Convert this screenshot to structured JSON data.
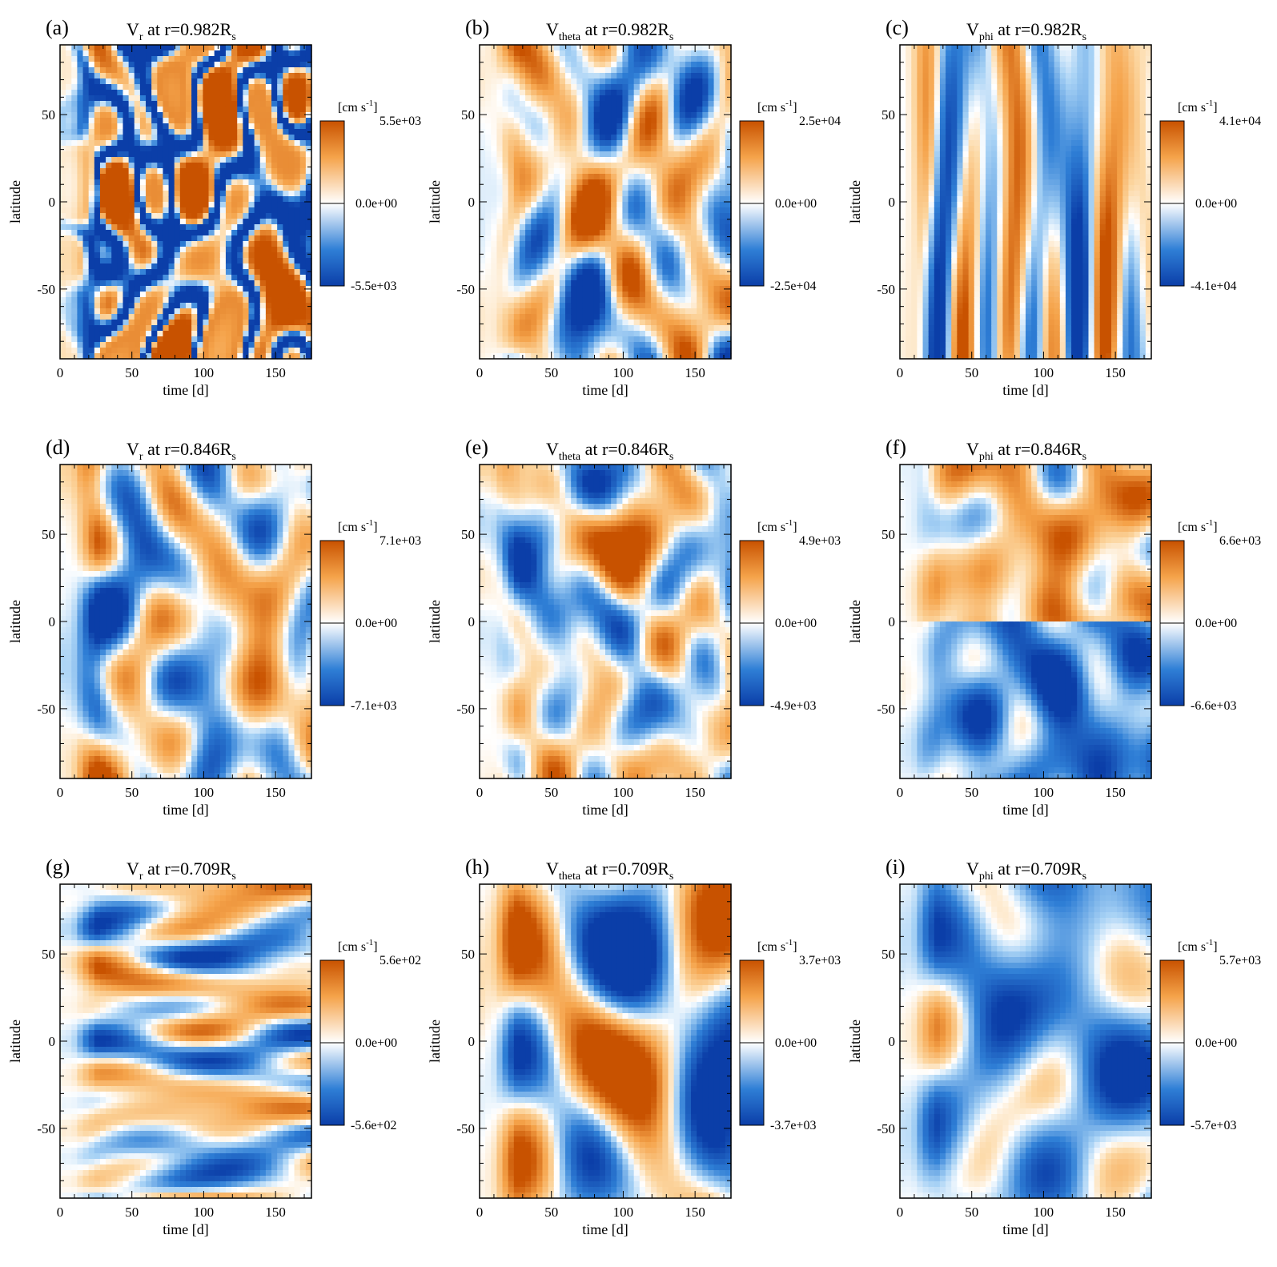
{
  "figure": {
    "colors": {
      "positive": "#c85200",
      "zero": "#ffffff",
      "negative": "#0b3ea8",
      "mid_pos": "#f5a34a",
      "mid_neg": "#4c97e0"
    },
    "x_ticks": [
      "0",
      "50",
      "100",
      "150"
    ],
    "y_ticks": [
      "50",
      "0",
      "-50"
    ],
    "xlabel": "time [d]",
    "ylabel": "latitude",
    "colorbar_unit": "[cm s",
    "colorbar_unit_sup": "-1",
    "colorbar_unit_close": "]",
    "colorbar_zero": "0.0e+00"
  },
  "chart_data": [
    {
      "type": "heatmap",
      "panel": "(a)",
      "title_main": "V",
      "title_sub": "r",
      "title_rest": " at r=0.982R",
      "title_sub2": "s",
      "variable": "Vr",
      "radius": "0.982",
      "xlabel": "time [d]",
      "ylabel": "latitude",
      "xlim": [
        0,
        175
      ],
      "ylim": [
        -90,
        90
      ],
      "cbar_max": "5.5e+03",
      "cbar_min": "-5.5e+03",
      "vmax": 5500,
      "pattern": "cells"
    },
    {
      "type": "heatmap",
      "panel": "(b)",
      "title_main": "V",
      "title_sub": "theta",
      "title_rest": " at r=0.982R",
      "title_sub2": "s",
      "variable": "Vtheta",
      "radius": "0.982",
      "xlabel": "time [d]",
      "ylabel": "latitude",
      "xlim": [
        0,
        175
      ],
      "ylim": [
        -90,
        90
      ],
      "cbar_max": "2.5e+04",
      "cbar_min": "-2.5e+04",
      "vmax": 25000,
      "pattern": "blobs"
    },
    {
      "type": "heatmap",
      "panel": "(c)",
      "title_main": "V",
      "title_sub": "phi",
      "title_rest": " at r=0.982R",
      "title_sub2": "s",
      "variable": "Vphi",
      "radius": "0.982",
      "xlabel": "time [d]",
      "ylabel": "latitude",
      "xlim": [
        0,
        175
      ],
      "ylim": [
        -90,
        90
      ],
      "cbar_max": "4.1e+04",
      "cbar_min": "-4.1e+04",
      "vmax": 41000,
      "pattern": "stripes"
    },
    {
      "type": "heatmap",
      "panel": "(d)",
      "title_main": "V",
      "title_sub": "r",
      "title_rest": " at r=0.846R",
      "title_sub2": "s",
      "variable": "Vr",
      "radius": "0.846",
      "xlabel": "time [d]",
      "ylabel": "latitude",
      "xlim": [
        0,
        175
      ],
      "ylim": [
        -90,
        90
      ],
      "cbar_max": "7.1e+03",
      "cbar_min": "-7.1e+03",
      "vmax": 7100,
      "pattern": "blobs"
    },
    {
      "type": "heatmap",
      "panel": "(e)",
      "title_main": "V",
      "title_sub": "theta",
      "title_rest": " at r=0.846R",
      "title_sub2": "s",
      "variable": "Vtheta",
      "radius": "0.846",
      "xlabel": "time [d]",
      "ylabel": "latitude",
      "xlim": [
        0,
        175
      ],
      "ylim": [
        -90,
        90
      ],
      "cbar_max": "4.9e+03",
      "cbar_min": "-4.9e+03",
      "vmax": 4900,
      "pattern": "blobs"
    },
    {
      "type": "heatmap",
      "panel": "(f)",
      "title_main": "V",
      "title_sub": "phi",
      "title_rest": " at r=0.846R",
      "title_sub2": "s",
      "variable": "Vphi",
      "radius": "0.846",
      "xlabel": "time [d]",
      "ylabel": "latitude",
      "xlim": [
        0,
        175
      ],
      "ylim": [
        -90,
        90
      ],
      "cbar_max": "6.6e+03",
      "cbar_min": "-6.6e+03",
      "vmax": 6600,
      "pattern": "equatorial"
    },
    {
      "type": "heatmap",
      "panel": "(g)",
      "title_main": "V",
      "title_sub": "r",
      "title_rest": " at r=0.709R",
      "title_sub2": "s",
      "variable": "Vr",
      "radius": "0.709",
      "xlabel": "time [d]",
      "ylabel": "latitude",
      "xlim": [
        0,
        175
      ],
      "ylim": [
        -90,
        90
      ],
      "cbar_max": "5.6e+02",
      "cbar_min": "-5.6e+02",
      "vmax": 560,
      "pattern": "bands"
    },
    {
      "type": "heatmap",
      "panel": "(h)",
      "title_main": "V",
      "title_sub": "theta",
      "title_rest": " at r=0.709R",
      "title_sub2": "s",
      "variable": "Vtheta",
      "radius": "0.709",
      "xlabel": "time [d]",
      "ylabel": "latitude",
      "xlim": [
        0,
        175
      ],
      "ylim": [
        -90,
        90
      ],
      "cbar_max": "3.7e+03",
      "cbar_min": "-3.7e+03",
      "vmax": 3700,
      "pattern": "large"
    },
    {
      "type": "heatmap",
      "panel": "(i)",
      "title_main": "V",
      "title_sub": "phi",
      "title_rest": " at r=0.709R",
      "title_sub2": "s",
      "variable": "Vphi",
      "radius": "0.709",
      "xlabel": "time [d]",
      "ylabel": "latitude",
      "xlim": [
        0,
        175
      ],
      "ylim": [
        -90,
        90
      ],
      "cbar_max": "5.7e+03",
      "cbar_min": "-5.7e+03",
      "vmax": 5700,
      "pattern": "diagonal"
    }
  ]
}
